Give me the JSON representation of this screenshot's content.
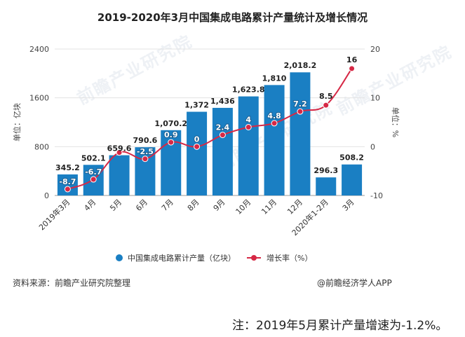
{
  "watermark": "前瞻产业研究院",
  "source_left": "资料来源：前瞻产业研究院整理",
  "source_right": "@前瞻经济学人APP",
  "note": "注：2019年5月累计产量增速为-1.2%。",
  "colors": {
    "bar": "#1a7fc3",
    "line": "#d62845",
    "grid": "#e3e3e3",
    "axis": "#999999"
  },
  "chart_data": {
    "type": "bar",
    "title": "2019-2020年3月中国集成电路累计产量统计及增长情况",
    "categories": [
      "2019年3月",
      "4月",
      "5月",
      "6月",
      "7月",
      "8月",
      "9月",
      "10月",
      "11月",
      "12月",
      "2020年1-2月",
      "3月"
    ],
    "ylabel": "单位：亿块",
    "y2label": "单位：%",
    "ylim": [
      0,
      2400
    ],
    "y2lim": [
      -10,
      20
    ],
    "yticks": [
      "0",
      "800",
      "1600",
      "2400"
    ],
    "y2ticks": [
      "-10",
      "0",
      "10",
      "20"
    ],
    "series": [
      {
        "name": "中国集成电路累计产量（亿块）",
        "type": "bar",
        "values": [
          345.2,
          502.1,
          659.6,
          790.6,
          1070.2,
          1372,
          1436,
          1623.8,
          1810,
          2018.2,
          296.3,
          508.2
        ],
        "labels": [
          "345.2",
          "502.1",
          "659.6",
          "790.6",
          "1,070.2",
          "1,372",
          "1,436",
          "1,623.8",
          "1,810",
          "2,018.2",
          "296.3",
          "508.2"
        ]
      },
      {
        "name": "增长率（%）",
        "type": "line",
        "axis": "right",
        "values": [
          -8.7,
          -6.7,
          -1.2,
          -2.5,
          0.9,
          0,
          2.4,
          4,
          4.8,
          7.2,
          8.5,
          16
        ],
        "labels": [
          "-8.7",
          "-6.7",
          "",
          "-2.5",
          "0.9",
          "0",
          "2.4",
          "4",
          "4.8",
          "7.2",
          "8.5",
          "16"
        ]
      }
    ],
    "legend": "bottom",
    "grid": true
  }
}
